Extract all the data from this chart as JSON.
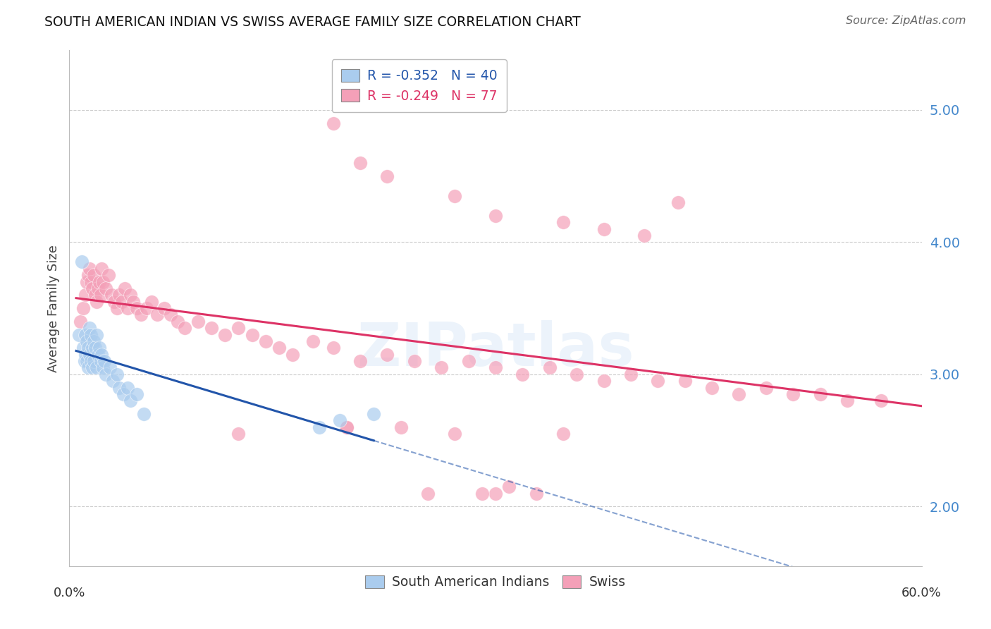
{
  "title": "SOUTH AMERICAN INDIAN VS SWISS AVERAGE FAMILY SIZE CORRELATION CHART",
  "source": "Source: ZipAtlas.com",
  "ylabel": "Average Family Size",
  "ytick_labels": [
    "2.00",
    "3.00",
    "4.00",
    "5.00"
  ],
  "ytick_values": [
    2.0,
    3.0,
    4.0,
    5.0
  ],
  "ylim": [
    1.55,
    5.45
  ],
  "xlim": [
    -0.005,
    0.625
  ],
  "legend_line1_R": "R = -0.352",
  "legend_line1_N": "N = 40",
  "legend_line2_R": "R = -0.249",
  "legend_line2_N": "N = 77",
  "blue_color": "#aaccee",
  "pink_color": "#f4a0b8",
  "blue_line_color": "#2255aa",
  "pink_line_color": "#dd3366",
  "watermark": "ZIPatlas",
  "sa_x": [
    0.002,
    0.004,
    0.005,
    0.006,
    0.007,
    0.007,
    0.008,
    0.008,
    0.009,
    0.009,
    0.01,
    0.01,
    0.011,
    0.011,
    0.012,
    0.012,
    0.013,
    0.013,
    0.014,
    0.015,
    0.015,
    0.016,
    0.017,
    0.018,
    0.019,
    0.02,
    0.021,
    0.022,
    0.025,
    0.027,
    0.03,
    0.032,
    0.035,
    0.038,
    0.04,
    0.045,
    0.05,
    0.18,
    0.195,
    0.22
  ],
  "sa_y": [
    3.3,
    3.85,
    3.2,
    3.1,
    3.3,
    3.15,
    3.25,
    3.1,
    3.2,
    3.05,
    3.35,
    3.15,
    3.3,
    3.1,
    3.2,
    3.05,
    3.25,
    3.1,
    3.2,
    3.3,
    3.05,
    3.15,
    3.2,
    3.1,
    3.15,
    3.05,
    3.1,
    3.0,
    3.05,
    2.95,
    3.0,
    2.9,
    2.85,
    2.9,
    2.8,
    2.85,
    2.7,
    2.6,
    2.65,
    2.7
  ],
  "sw_x": [
    0.003,
    0.005,
    0.007,
    0.008,
    0.009,
    0.01,
    0.011,
    0.012,
    0.013,
    0.014,
    0.015,
    0.016,
    0.017,
    0.018,
    0.019,
    0.02,
    0.022,
    0.024,
    0.026,
    0.028,
    0.03,
    0.032,
    0.034,
    0.036,
    0.038,
    0.04,
    0.042,
    0.045,
    0.048,
    0.052,
    0.056,
    0.06,
    0.065,
    0.07,
    0.075,
    0.08,
    0.09,
    0.1,
    0.11,
    0.12,
    0.13,
    0.14,
    0.15,
    0.16,
    0.175,
    0.19,
    0.21,
    0.23,
    0.25,
    0.27,
    0.29,
    0.31,
    0.33,
    0.35,
    0.37,
    0.39,
    0.41,
    0.43,
    0.45,
    0.47,
    0.49,
    0.51,
    0.53,
    0.55,
    0.57,
    0.595,
    0.2,
    0.24,
    0.28,
    0.31,
    0.34,
    0.12,
    0.2,
    0.26,
    0.3,
    0.32,
    0.36
  ],
  "sw_y": [
    3.4,
    3.5,
    3.6,
    3.7,
    3.75,
    3.8,
    3.7,
    3.65,
    3.75,
    3.6,
    3.55,
    3.65,
    3.7,
    3.6,
    3.8,
    3.7,
    3.65,
    3.75,
    3.6,
    3.55,
    3.5,
    3.6,
    3.55,
    3.65,
    3.5,
    3.6,
    3.55,
    3.5,
    3.45,
    3.5,
    3.55,
    3.45,
    3.5,
    3.45,
    3.4,
    3.35,
    3.4,
    3.35,
    3.3,
    3.35,
    3.3,
    3.25,
    3.2,
    3.15,
    3.25,
    3.2,
    3.1,
    3.15,
    3.1,
    3.05,
    3.1,
    3.05,
    3.0,
    3.05,
    3.0,
    2.95,
    3.0,
    2.95,
    2.95,
    2.9,
    2.85,
    2.9,
    2.85,
    2.85,
    2.8,
    2.8,
    2.6,
    2.6,
    2.55,
    2.1,
    2.1,
    2.55,
    2.6,
    2.1,
    2.1,
    2.15,
    2.55
  ],
  "sw_high_x": [
    0.19,
    0.21,
    0.23,
    0.28,
    0.31,
    0.36,
    0.39,
    0.42,
    0.445
  ],
  "sw_high_y": [
    4.9,
    4.6,
    4.5,
    4.35,
    4.2,
    4.15,
    4.1,
    4.05,
    4.3
  ]
}
